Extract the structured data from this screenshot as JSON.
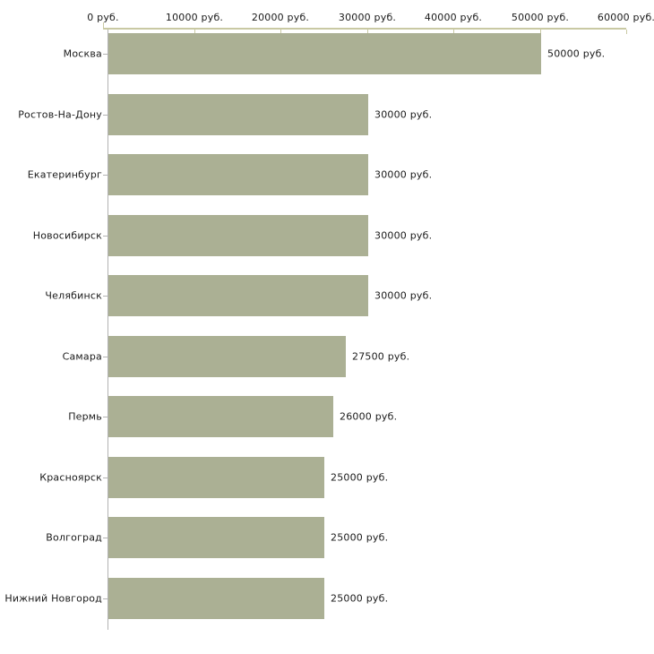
{
  "chart_data": {
    "type": "bar",
    "orientation": "horizontal",
    "title": "",
    "xlabel": "",
    "ylabel": "",
    "grid": false,
    "legend": false,
    "categories": [
      "Москва",
      "Ростов-На-Дону",
      "Екатеринбург",
      "Новосибирск",
      "Челябинск",
      "Самара",
      "Пермь",
      "Красноярск",
      "Волгоград",
      "Нижний Новгород"
    ],
    "values": [
      50000,
      30000,
      30000,
      30000,
      30000,
      27500,
      26000,
      25000,
      25000,
      25000
    ],
    "value_labels": [
      "50000 руб.",
      "30000 руб.",
      "30000 руб.",
      "30000 руб.",
      "30000 руб.",
      "27500 руб.",
      "26000 руб.",
      "25000 руб.",
      "25000 руб.",
      "25000 руб."
    ],
    "x_axis": {
      "position": "top",
      "range": [
        0,
        60000
      ],
      "tick_values": [
        0,
        10000,
        20000,
        30000,
        40000,
        50000,
        60000
      ],
      "tick_labels": [
        "0 руб.",
        "10000 руб.",
        "20000 руб.",
        "30000 руб.",
        "40000 руб.",
        "50000 руб.",
        "60000 руб."
      ],
      "unit": "руб."
    },
    "colors": {
      "bar": "#abb094",
      "axis_line": "#c9c9a3",
      "category_axis_line": "#b3b3b3",
      "text": "#1a1a1a",
      "background": "#ffffff"
    }
  }
}
